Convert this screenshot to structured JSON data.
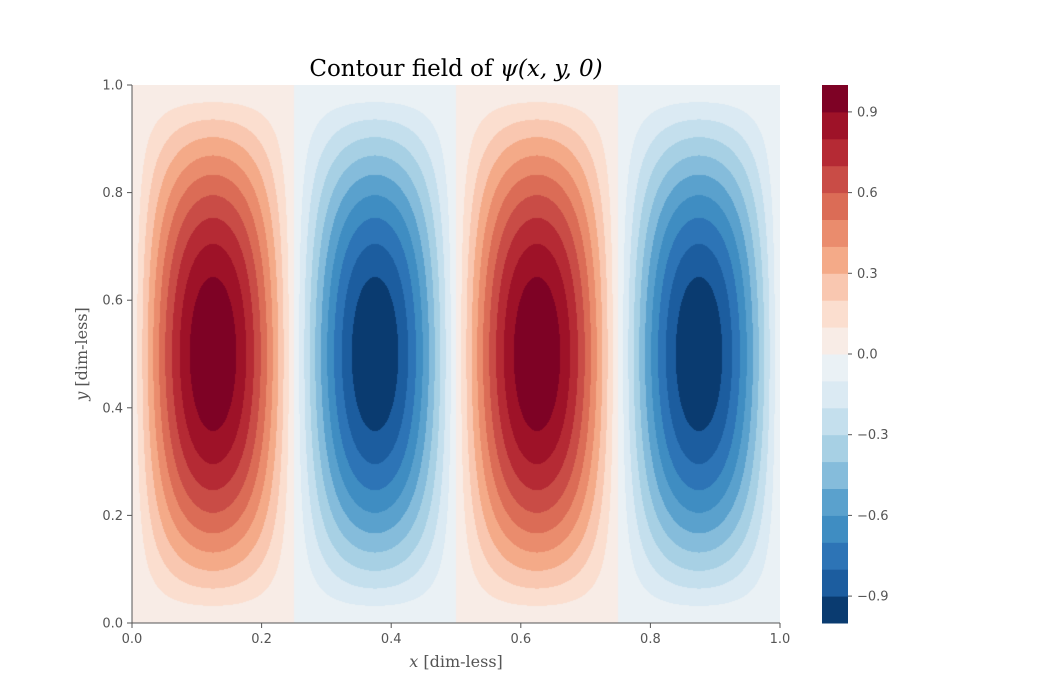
{
  "chart_data": {
    "type": "contour",
    "title_prefix": "Contour field of ",
    "title_math": "ψ(x, y, 0)",
    "xlabel_var": "x",
    "xlabel_unit": " [dim-less]",
    "ylabel_var": "y",
    "ylabel_unit": " [dim-less]",
    "xlim": [
      0.0,
      1.0
    ],
    "ylim": [
      0.0,
      1.0
    ],
    "xticks": [
      "0.0",
      "0.2",
      "0.4",
      "0.6",
      "0.8",
      "1.0"
    ],
    "yticks": [
      "0.0",
      "0.2",
      "0.4",
      "0.6",
      "0.8",
      "1.0"
    ],
    "field": "sin(4πx)·sin(πy)",
    "grid": false,
    "colormap": "RdBu_r",
    "colorbar": {
      "vmin": -1.0,
      "vmax": 1.0,
      "levels": [
        -1.0,
        -0.9,
        -0.8,
        -0.7,
        -0.6,
        -0.5,
        -0.4,
        -0.3,
        -0.2,
        -0.1,
        0.0,
        0.1,
        0.2,
        0.3,
        0.4,
        0.5,
        0.6,
        0.7,
        0.8,
        0.9,
        1.0
      ],
      "colors": [
        "#0a3b70",
        "#1c5d9f",
        "#2d74b6",
        "#3f8dc2",
        "#5aa1cd",
        "#85bcdb",
        "#a7d0e4",
        "#c4dfed",
        "#dbeaf3",
        "#eaf1f5",
        "#f8ece6",
        "#fbdecf",
        "#f9c7b0",
        "#f4aa88",
        "#ea8c6d",
        "#db6c56",
        "#c94c46",
        "#b52a34",
        "#9e1228",
        "#7e0225"
      ],
      "ticks": [
        "−0.9",
        "−0.6",
        "−0.3",
        "0.0",
        "0.3",
        "0.6",
        "0.9"
      ],
      "tick_values": [
        -0.9,
        -0.6,
        -0.3,
        0.0,
        0.3,
        0.6,
        0.9
      ]
    }
  }
}
